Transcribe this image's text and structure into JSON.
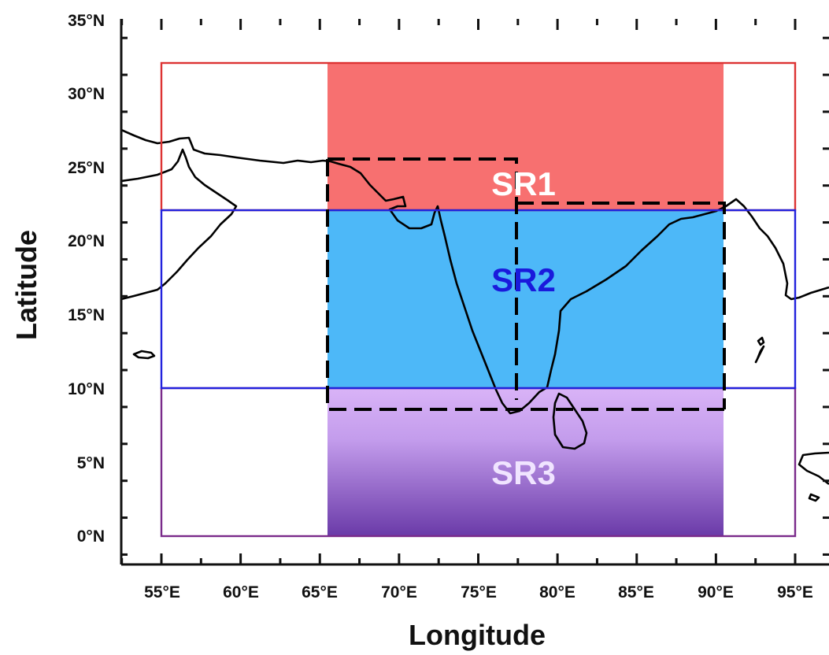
{
  "axes": {
    "xlabel": "Longitude",
    "ylabel": "Latitude",
    "x_ticks": [
      "55°E",
      "60°E",
      "65°E",
      "70°E",
      "75°E",
      "80°E",
      "85°E",
      "90°E",
      "95°E"
    ],
    "y_ticks": [
      "0°N",
      "5°N",
      "10°N",
      "15°N",
      "20°N",
      "25°N",
      "30°N",
      "35°N"
    ],
    "lon_range": [
      52.5,
      97.0
    ],
    "lat_range": [
      -2.0,
      35.0
    ]
  },
  "regions": [
    {
      "label": "SR1",
      "label_color": "#ffffff",
      "lon": [
        55,
        95
      ],
      "lat": [
        22,
        32
      ],
      "fill_lon": [
        65.5,
        90.5
      ],
      "fill_color": "#f77070",
      "border_color": "#dd3333"
    },
    {
      "label": "SR2",
      "label_color": "#1a1adc",
      "lon": [
        55,
        95
      ],
      "lat": [
        10,
        22
      ],
      "fill_lon": [
        65.5,
        90.5
      ],
      "fill_color": "#4db8f8",
      "border_color": "#2222dd"
    },
    {
      "label": "SR3",
      "label_color": "#f0e4ff",
      "lon": [
        55,
        95
      ],
      "lat": [
        0,
        10
      ],
      "fill_lon": [
        65.5,
        90.5
      ],
      "fill_color_top": "#d9b3f7",
      "fill_color_bottom": "#6a3aa8",
      "border_color": "#7a2a8a"
    }
  ],
  "colors": {
    "coastline": "#000000",
    "dashed_box": "#000000",
    "axis": "#111111"
  }
}
